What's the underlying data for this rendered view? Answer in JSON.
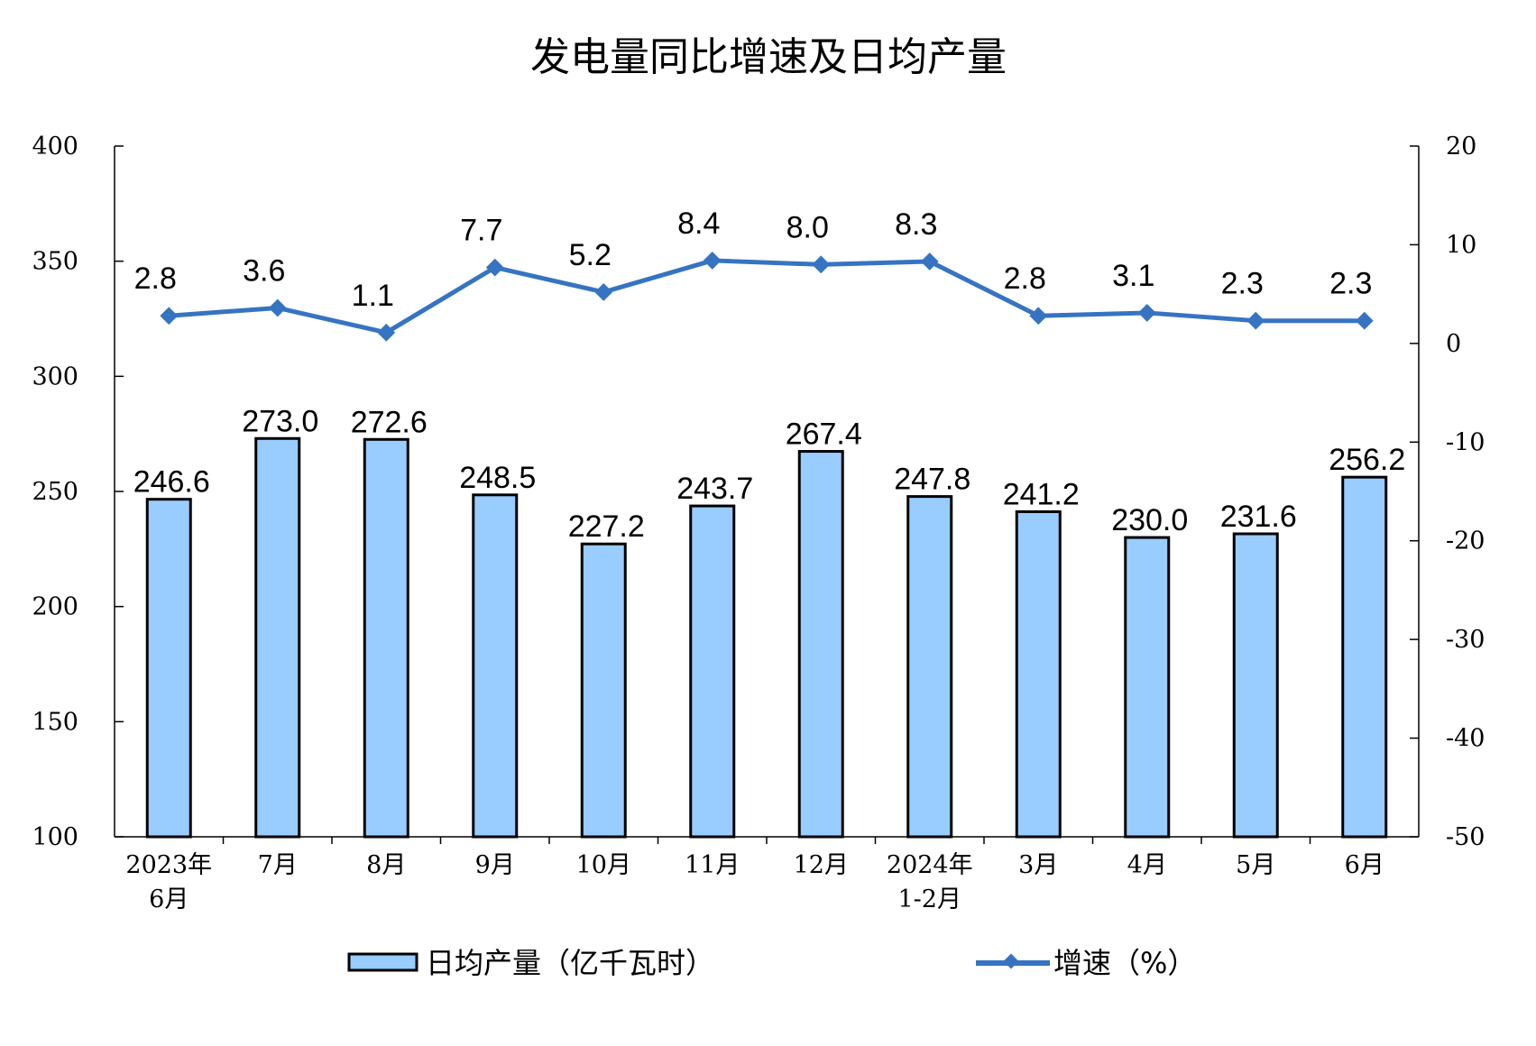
{
  "chart_data": {
    "type": "bar",
    "title": "发电量同比增速及日均产量",
    "categories": [
      [
        "2023年",
        "6月"
      ],
      [
        "7月"
      ],
      [
        "8月"
      ],
      [
        "9月"
      ],
      [
        "10月"
      ],
      [
        "11月"
      ],
      [
        "12月"
      ],
      [
        "2024年",
        "1-2月"
      ],
      [
        "3月"
      ],
      [
        "4月"
      ],
      [
        "5月"
      ],
      [
        "6月"
      ]
    ],
    "series": [
      {
        "name": "日均产量（亿千瓦时）",
        "type": "bar",
        "axis": "left",
        "values": [
          246.6,
          273.0,
          272.6,
          248.5,
          227.2,
          243.7,
          267.4,
          247.8,
          241.2,
          230.0,
          231.6,
          256.2
        ],
        "labels": [
          "246.6",
          "273.0",
          "272.6",
          "248.5",
          "227.2",
          "243.7",
          "267.4",
          "247.8",
          "241.2",
          "230.0",
          "231.6",
          "256.2"
        ],
        "color": "#99ccff"
      },
      {
        "name": "增速（%）",
        "type": "line",
        "axis": "right",
        "values": [
          2.8,
          3.6,
          1.1,
          7.7,
          5.2,
          8.4,
          8.0,
          8.3,
          2.8,
          3.1,
          2.3,
          2.3
        ],
        "labels": [
          "2.8",
          "3.6",
          "1.1",
          "7.7",
          "5.2",
          "8.4",
          "8.0",
          "8.3",
          "2.8",
          "3.1",
          "2.3",
          "2.3"
        ],
        "color": "#3674c2"
      }
    ],
    "left_axis": {
      "ylim": [
        100,
        400
      ],
      "ticks": [
        100,
        150,
        200,
        250,
        300,
        350,
        400
      ]
    },
    "right_axis": {
      "ylim": [
        -50,
        20
      ],
      "ticks": [
        -50,
        -40,
        -30,
        -20,
        -10,
        0,
        10,
        20
      ]
    },
    "grid": false,
    "legend_position": "bottom"
  }
}
